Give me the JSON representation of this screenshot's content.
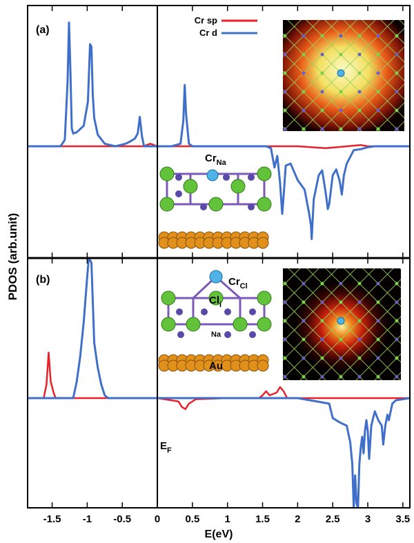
{
  "chart_data": {
    "type": "line",
    "xlabel": "E(eV)",
    "ylabel": "PDOS (arb.unit)",
    "xlim": [
      -1.85,
      3.6
    ],
    "xticks": [
      -1.5,
      -1,
      -0.5,
      0,
      0.5,
      1,
      1.5,
      2,
      2.5,
      3,
      3.5
    ],
    "xtick_labels": [
      "-1.5",
      "-1",
      "-0.5",
      "0",
      "0.5",
      "1",
      "1.5",
      "2",
      "2.5",
      "3",
      "3.5"
    ],
    "fermi_label_main": "E",
    "fermi_label_sub": "F",
    "legend": {
      "placement": "top-center",
      "entries": [
        {
          "label": "Cr sp",
          "color": "#e8202a"
        },
        {
          "label": "Cr d",
          "color": "#3f6fc8"
        }
      ]
    },
    "panels": [
      {
        "label": "(a)",
        "ylim": [
          -1.0,
          1.0
        ],
        "annotations": [
          {
            "main": "Cr",
            "sub": "Na"
          }
        ],
        "insets": [
          "atomic-structure-side-view",
          "charge-density-map"
        ],
        "series": [
          {
            "name": "Cr sp",
            "color": "#e8202a",
            "x": [
              -1.85,
              -1.0,
              -0.2,
              -0.1,
              0.0,
              1.0,
              2.0,
              2.4,
              2.9,
              3.0,
              3.6
            ],
            "y": [
              0.0,
              0.0,
              0.0,
              0.02,
              0.0,
              0.0,
              0.0,
              -0.02,
              0.01,
              0.0,
              0.0
            ]
          },
          {
            "name": "Cr d",
            "color": "#3f6fc8",
            "x": [
              -1.85,
              -1.38,
              -1.32,
              -1.28,
              -1.26,
              -1.24,
              -1.22,
              -1.2,
              -1.15,
              -1.05,
              -0.99,
              -0.96,
              -0.94,
              -0.92,
              -0.9,
              -0.85,
              -0.75,
              -0.6,
              -0.45,
              -0.38,
              -0.32,
              -0.28,
              -0.25,
              -0.22,
              -0.19,
              -0.1,
              0.0,
              0.2,
              0.33,
              0.37,
              0.39,
              0.41,
              0.45,
              0.5,
              0.6,
              1.0,
              1.55,
              1.62,
              1.67,
              1.71,
              1.75,
              1.78,
              1.8,
              1.83,
              1.9,
              2.0,
              2.1,
              2.16,
              2.19,
              2.2,
              2.23,
              2.3,
              2.35,
              2.4,
              2.43,
              2.45,
              2.5,
              2.55,
              2.6,
              2.63,
              2.66,
              2.7,
              2.8,
              2.9,
              3.0,
              3.1,
              3.2,
              3.6
            ],
            "y": [
              0.0,
              0.0,
              0.05,
              0.5,
              0.97,
              0.6,
              0.14,
              0.1,
              0.11,
              0.16,
              0.35,
              0.8,
              0.78,
              0.4,
              0.22,
              0.09,
              0.02,
              0.0,
              0.02,
              0.04,
              0.06,
              0.1,
              0.23,
              0.08,
              0.0,
              0.0,
              0.0,
              0.0,
              0.02,
              0.2,
              0.48,
              0.25,
              0.02,
              0.0,
              0.0,
              0.0,
              0.0,
              -0.02,
              -0.22,
              -0.1,
              -0.38,
              -0.7,
              -0.52,
              -0.2,
              -0.18,
              -0.35,
              -0.45,
              -0.68,
              -0.82,
              -0.96,
              -0.55,
              -0.3,
              -0.25,
              -0.48,
              -0.65,
              -0.6,
              -0.3,
              -0.24,
              -0.36,
              -0.5,
              -0.3,
              -0.18,
              -0.04,
              -0.03,
              -0.01,
              0.0,
              0.0,
              0.0
            ]
          }
        ]
      },
      {
        "label": "(b)",
        "ylim": [
          -1.0,
          1.0
        ],
        "annotations": [
          {
            "main": "Cr",
            "sub": "Cl"
          },
          {
            "main": "Cl",
            "sub": "i"
          },
          {
            "main": "Na",
            "sub": ""
          },
          {
            "main": "Au",
            "sub": ""
          }
        ],
        "insets": [
          "atomic-structure-side-view",
          "charge-density-map"
        ],
        "series": [
          {
            "name": "Cr sp",
            "color": "#e8202a",
            "x": [
              -1.85,
              -1.62,
              -1.58,
              -1.55,
              -1.52,
              -1.5,
              -1.48,
              -1.45,
              -1.3,
              0.0,
              0.3,
              0.35,
              0.4,
              0.45,
              0.55,
              1.0,
              1.45,
              1.5,
              1.55,
              1.6,
              1.7,
              1.75,
              1.8,
              1.85,
              2.0,
              3.6
            ],
            "y": [
              0.0,
              0.0,
              0.1,
              0.33,
              0.12,
              0.08,
              0.04,
              0.0,
              0.0,
              0.0,
              -0.03,
              -0.08,
              -0.1,
              -0.05,
              -0.01,
              0.0,
              0.0,
              0.02,
              0.05,
              0.02,
              0.04,
              0.08,
              0.05,
              0.0,
              0.0,
              0.0
            ]
          },
          {
            "name": "Cr d",
            "color": "#3f6fc8",
            "x": [
              -1.85,
              -1.2,
              -1.15,
              -1.1,
              -1.05,
              -1.0,
              -0.98,
              -0.96,
              -0.94,
              -0.92,
              -0.9,
              -0.85,
              -0.8,
              -0.75,
              -0.7,
              0.0,
              2.0,
              2.45,
              2.5,
              2.6,
              2.7,
              2.75,
              2.78,
              2.8,
              2.82,
              2.84,
              2.86,
              2.88,
              2.9,
              2.92,
              2.94,
              2.96,
              2.98,
              3.0,
              3.02,
              3.05,
              3.1,
              3.15,
              3.2,
              3.22,
              3.25,
              3.28,
              3.3,
              3.35,
              3.4,
              3.6
            ],
            "y": [
              0.0,
              0.0,
              0.12,
              0.3,
              0.55,
              0.88,
              1.0,
              1.0,
              0.98,
              0.7,
              0.4,
              0.22,
              0.1,
              0.02,
              0.0,
              0.0,
              0.0,
              -0.05,
              -0.18,
              -0.22,
              -0.25,
              -0.4,
              -0.6,
              -1.0,
              -0.7,
              -0.95,
              -1.0,
              -0.6,
              -0.45,
              -0.35,
              -0.5,
              -0.3,
              -0.2,
              -0.3,
              -0.55,
              -0.25,
              -0.12,
              -0.2,
              -0.25,
              -0.42,
              -0.25,
              -0.15,
              -0.2,
              -0.05,
              -0.02,
              0.0
            ]
          }
        ]
      }
    ]
  },
  "inset_colors": {
    "density_glow": "#f7f7a0",
    "density_mid": "#e23b10",
    "grid_line": "#9ad35a",
    "grid_node_purple": "#6c5fc8",
    "grid_node_green": "#7ad14a",
    "center_atom": "#4fb3e8",
    "cl_atom": "#62c23a",
    "na_atom": "#5a4aa8",
    "au_atom": "#e2901c",
    "bond": "#7d5ab8"
  }
}
